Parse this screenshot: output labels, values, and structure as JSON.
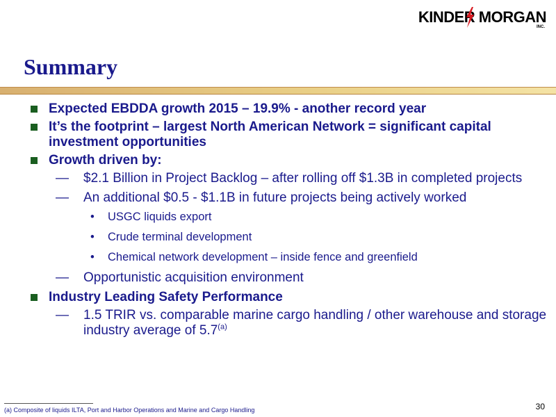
{
  "logo": {
    "name": "KINDER MORGAN",
    "inc": "INC.",
    "colors": {
      "text": "#000000",
      "bolt": "#d71920"
    }
  },
  "title": "Summary",
  "colors": {
    "heading": "#1a1a8c",
    "bullet_square": "#1a5e20"
  },
  "bullets": [
    {
      "text": "Expected EBDDA growth 2015 – 19.9% - another record year"
    },
    {
      "text": "It’s the footprint – largest North American Network = significant capital investment opportunities"
    },
    {
      "text": "Growth driven by:",
      "subs": [
        {
          "marker": "—",
          "text": "$2.1 Billion in Project Backlog – after rolling off $1.3B in completed projects"
        },
        {
          "marker": "—",
          "text": "An additional $0.5 - $1.1B in future projects being actively worked",
          "items": [
            {
              "marker": "•",
              "text": "USGC liquids export"
            },
            {
              "marker": "•",
              "text": "Crude terminal development"
            },
            {
              "marker": "•",
              "text": "Chemical network development – inside fence and greenfield"
            }
          ]
        },
        {
          "marker": "—",
          "text": "Opportunistic acquisition environment"
        }
      ]
    },
    {
      "text": "Industry Leading Safety Performance",
      "subs": [
        {
          "marker": "—",
          "text": "1.5 TRIR vs. comparable marine cargo handling / other warehouse and storage industry average of 5.7",
          "sup": "(a)"
        }
      ]
    }
  ],
  "footnote": "(a) Composite of liquids ILTA, Port and Harbor Operations and Marine and Cargo Handling",
  "page_number": "30"
}
